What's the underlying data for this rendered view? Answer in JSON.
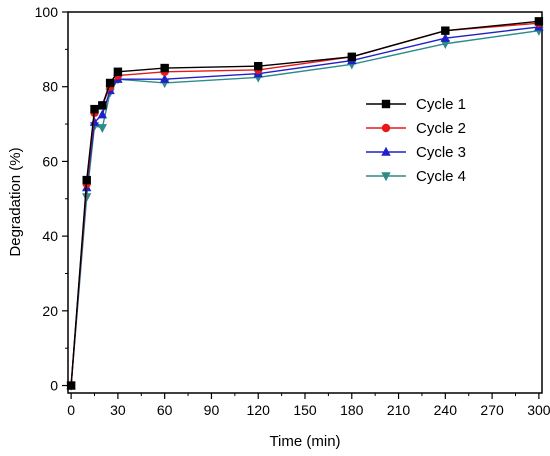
{
  "chart_data": {
    "type": "line",
    "xlabel": "Time (min)",
    "ylabel": "Degradation (%)",
    "xlim": [
      -2,
      302
    ],
    "ylim": [
      -2,
      100
    ],
    "xticks": [
      0,
      30,
      60,
      90,
      120,
      150,
      180,
      210,
      240,
      270,
      300
    ],
    "yticks": [
      0,
      20,
      40,
      60,
      80,
      100
    ],
    "x": [
      0,
      10,
      15,
      20,
      25,
      30,
      60,
      120,
      180,
      240,
      300
    ],
    "legend_position": "right-center",
    "series": [
      {
        "name": "Cycle 1",
        "color": "#000000",
        "marker": "square",
        "values": [
          0,
          55,
          74,
          75,
          81,
          84,
          85,
          85.5,
          88,
          95,
          97.5
        ]
      },
      {
        "name": "Cycle 2",
        "color": "#e8191b",
        "marker": "circle",
        "values": [
          0,
          54,
          73,
          75,
          80,
          83,
          84,
          84.5,
          88,
          95,
          97
        ]
      },
      {
        "name": "Cycle 3",
        "color": "#2020c8",
        "marker": "triangle-up",
        "values": [
          0,
          53,
          70.5,
          72.5,
          79,
          82,
          82,
          83.5,
          87,
          93,
          96
        ]
      },
      {
        "name": "Cycle 4",
        "color": "#2e8b8b",
        "marker": "triangle-down",
        "values": [
          0,
          50.5,
          69.5,
          69,
          78.5,
          82,
          81,
          82.5,
          86,
          91.5,
          95
        ]
      }
    ]
  }
}
